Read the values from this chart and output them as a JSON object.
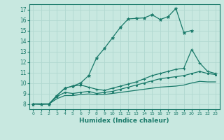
{
  "xlabel": "Humidex (Indice chaleur)",
  "xlim": [
    -0.5,
    23.5
  ],
  "ylim": [
    7.5,
    17.5
  ],
  "xticks": [
    0,
    1,
    2,
    3,
    4,
    5,
    6,
    7,
    8,
    9,
    10,
    11,
    12,
    13,
    14,
    15,
    16,
    17,
    18,
    19,
    20,
    21,
    22,
    23
  ],
  "yticks": [
    8,
    9,
    10,
    11,
    12,
    13,
    14,
    15,
    16,
    17
  ],
  "bg_color": "#c8e8e0",
  "line_color": "#1a7a6a",
  "grid_color": "#b0d8d0",
  "line1_x": [
    0,
    1,
    2,
    3,
    4,
    5,
    6,
    7,
    8,
    9,
    10,
    11,
    12,
    13,
    14,
    15,
    16,
    17,
    18,
    19,
    20
  ],
  "line1_y": [
    8.0,
    7.95,
    8.0,
    8.8,
    9.5,
    9.7,
    10.0,
    10.7,
    12.4,
    13.3,
    14.3,
    15.3,
    16.1,
    16.15,
    16.2,
    16.5,
    16.05,
    16.3,
    17.1,
    14.8,
    15.0
  ],
  "line2_x": [
    0,
    2,
    3,
    4,
    5,
    6,
    7,
    8,
    9,
    10,
    11,
    12,
    13,
    14,
    15,
    16,
    17,
    18,
    19,
    20,
    21,
    22,
    23
  ],
  "line2_y": [
    8.0,
    8.0,
    8.8,
    9.5,
    9.7,
    9.8,
    9.6,
    9.4,
    9.3,
    9.5,
    9.7,
    9.9,
    10.1,
    10.4,
    10.7,
    10.9,
    11.1,
    11.3,
    11.4,
    13.2,
    11.9,
    11.1,
    10.9
  ],
  "line3_x": [
    0,
    2,
    3,
    4,
    5,
    6,
    7,
    8,
    9,
    10,
    11,
    12,
    13,
    14,
    15,
    16,
    17,
    18,
    19,
    20,
    21,
    22,
    23
  ],
  "line3_y": [
    8.0,
    8.0,
    8.7,
    9.1,
    9.0,
    9.1,
    9.2,
    9.0,
    9.1,
    9.2,
    9.4,
    9.6,
    9.8,
    10.0,
    10.2,
    10.4,
    10.5,
    10.6,
    10.7,
    10.9,
    11.1,
    10.9,
    10.8
  ],
  "line4_x": [
    0,
    2,
    3,
    4,
    5,
    6,
    7,
    8,
    9,
    10,
    11,
    12,
    13,
    14,
    15,
    16,
    17,
    18,
    19,
    20,
    21,
    22,
    23
  ],
  "line4_y": [
    8.0,
    8.0,
    8.5,
    8.8,
    8.8,
    8.9,
    8.95,
    8.9,
    8.9,
    9.0,
    9.1,
    9.2,
    9.3,
    9.4,
    9.5,
    9.6,
    9.65,
    9.7,
    9.8,
    10.0,
    10.15,
    10.1,
    10.1
  ]
}
